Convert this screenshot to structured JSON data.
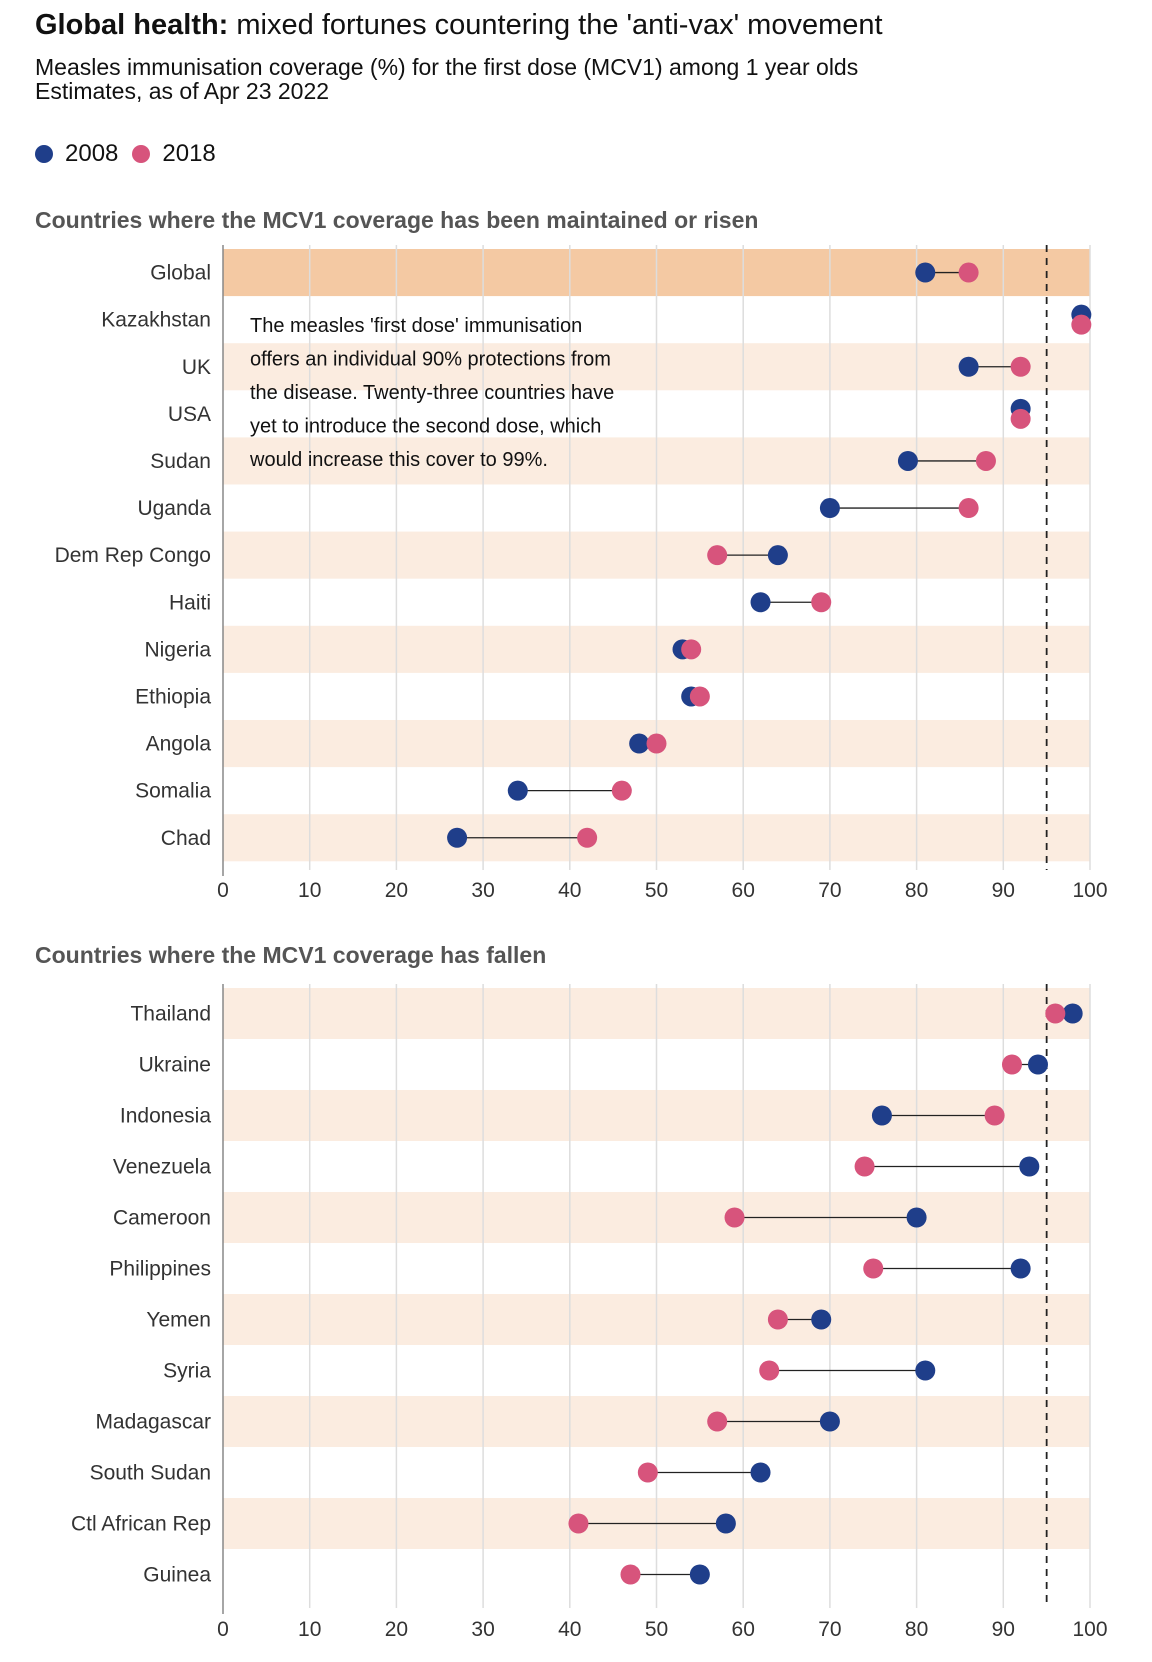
{
  "header": {
    "title_bold": "Global health:",
    "title_rest": " mixed fortunes countering the 'anti-vax' movement",
    "subtitle": "Measles immunisation coverage (%) for the first dose (MCV1) among 1 year olds",
    "subtitle2": "Estimates, as of Apr 23 2022"
  },
  "legend": [
    {
      "label": "2008",
      "color": "#1f3e8a"
    },
    {
      "label": "2018",
      "color": "#d7547c"
    }
  ],
  "colors": {
    "y2008": "#1f3e8a",
    "y2018": "#d7547c",
    "band": "#fbece0",
    "highlight": "#f4c9a3",
    "grid": "#dddddd"
  },
  "chart_data": [
    {
      "type": "dumbbell",
      "title": "Countries where the MCV1 coverage has been maintained or risen",
      "xlim": [
        0,
        100
      ],
      "xticks": [
        0,
        10,
        20,
        30,
        40,
        50,
        60,
        70,
        80,
        90,
        100
      ],
      "reference_line": 95,
      "highlight": "Global",
      "annotation_lines": [
        "The measles 'first dose' immunisation",
        "offers an individual 90% protections from",
        "the disease. Twenty-three countries have",
        "yet to introduce the second dose, which",
        "would increase this cover to 99%."
      ],
      "series": [
        {
          "name": "2008"
        },
        {
          "name": "2018"
        }
      ],
      "rows": [
        {
          "label": "Global",
          "v2008": 81,
          "v2018": 86
        },
        {
          "label": "Kazakhstan",
          "v2008": 99,
          "v2018": 99
        },
        {
          "label": "UK",
          "v2008": 86,
          "v2018": 92
        },
        {
          "label": "USA",
          "v2008": 92,
          "v2018": 92
        },
        {
          "label": "Sudan",
          "v2008": 79,
          "v2018": 88
        },
        {
          "label": "Uganda",
          "v2008": 70,
          "v2018": 86
        },
        {
          "label": "Dem Rep Congo",
          "v2008": 64,
          "v2018": 57
        },
        {
          "label": "Haiti",
          "v2008": 62,
          "v2018": 69
        },
        {
          "label": "Nigeria",
          "v2008": 53,
          "v2018": 54
        },
        {
          "label": "Ethiopia",
          "v2008": 54,
          "v2018": 55
        },
        {
          "label": "Angola",
          "v2008": 48,
          "v2018": 50
        },
        {
          "label": "Somalia",
          "v2008": 34,
          "v2018": 46
        },
        {
          "label": "Chad",
          "v2008": 27,
          "v2018": 42
        }
      ]
    },
    {
      "type": "dumbbell",
      "title": "Countries where the MCV1 coverage has fallen",
      "xlim": [
        0,
        100
      ],
      "xticks": [
        0,
        10,
        20,
        30,
        40,
        50,
        60,
        70,
        80,
        90,
        100
      ],
      "reference_line": 95,
      "series": [
        {
          "name": "2008"
        },
        {
          "name": "2018"
        }
      ],
      "rows": [
        {
          "label": "Thailand",
          "v2008": 98,
          "v2018": 96
        },
        {
          "label": "Ukraine",
          "v2008": 94,
          "v2018": 91
        },
        {
          "label": "Indonesia",
          "v2008": 76,
          "v2018": 89
        },
        {
          "label": "Venezuela",
          "v2008": 93,
          "v2018": 74
        },
        {
          "label": "Cameroon",
          "v2008": 80,
          "v2018": 59
        },
        {
          "label": "Philippines",
          "v2008": 92,
          "v2018": 75
        },
        {
          "label": "Yemen",
          "v2008": 69,
          "v2018": 64
        },
        {
          "label": "Syria",
          "v2008": 81,
          "v2018": 63
        },
        {
          "label": "Madagascar",
          "v2008": 70,
          "v2018": 57
        },
        {
          "label": "South Sudan",
          "v2008": 62,
          "v2018": 49
        },
        {
          "label": "Ctl African Rep",
          "v2008": 58,
          "v2018": 41
        },
        {
          "label": "Guinea",
          "v2008": 55,
          "v2018": 47
        }
      ]
    }
  ]
}
